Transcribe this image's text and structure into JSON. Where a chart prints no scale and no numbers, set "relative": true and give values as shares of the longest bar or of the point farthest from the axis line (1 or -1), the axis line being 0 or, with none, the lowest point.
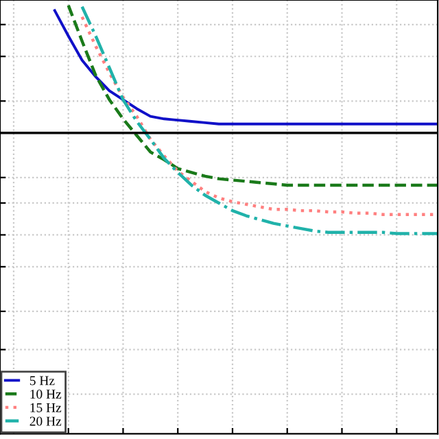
{
  "chart_data": {
    "type": "line",
    "relative": true,
    "categories": [
      null,
      null,
      null,
      null,
      null,
      null,
      null,
      null,
      null,
      null,
      null,
      null,
      null,
      null,
      null,
      null,
      null,
      null,
      null,
      null,
      null,
      null,
      null,
      null,
      null,
      null,
      null,
      null,
      null,
      null,
      null,
      null,
      null
    ],
    "series": [
      {
        "name": "5 Hz",
        "color": "#1010c8",
        "line_style": "solid",
        "values": [
          null,
          null,
          null,
          null,
          0.96,
          0.76,
          0.57,
          0.44,
          0.33,
          0.26,
          0.19,
          0.13,
          0.11,
          0.1,
          0.09,
          0.08,
          0.07,
          0.07,
          0.07,
          0.07,
          0.07,
          0.07,
          0.07,
          0.07,
          0.07,
          0.07,
          0.07,
          0.07,
          0.07,
          0.07,
          0.07,
          0.07,
          0.07
        ]
      },
      {
        "name": "10 Hz",
        "color": "#1a7a1a",
        "line_style": "dashed",
        "values": [
          null,
          null,
          null,
          null,
          null,
          1.0,
          0.72,
          0.45,
          0.26,
          0.11,
          -0.02,
          -0.15,
          -0.21,
          -0.28,
          -0.31,
          -0.34,
          -0.36,
          -0.37,
          -0.38,
          -0.39,
          -0.4,
          -0.41,
          -0.41,
          -0.41,
          -0.41,
          -0.41,
          -0.41,
          -0.41,
          -0.41,
          -0.41,
          -0.41,
          -0.41,
          -0.41
        ]
      },
      {
        "name": "15 Hz",
        "color": "#ff8080",
        "line_style": "dotted",
        "values": [
          null,
          null,
          null,
          null,
          null,
          null,
          0.91,
          0.68,
          0.47,
          0.28,
          0.13,
          -0.05,
          -0.18,
          -0.3,
          -0.38,
          -0.46,
          -0.51,
          -0.54,
          -0.56,
          -0.58,
          -0.6,
          -0.6,
          -0.61,
          -0.61,
          -0.62,
          -0.62,
          -0.63,
          -0.63,
          -0.64,
          -0.64,
          -0.64,
          -0.64,
          -0.64
        ]
      },
      {
        "name": "20 Hz",
        "color": "#20b2aa",
        "line_style": "dashdot",
        "values": [
          null,
          null,
          null,
          null,
          null,
          null,
          0.99,
          0.76,
          0.51,
          0.26,
          0.09,
          -0.05,
          -0.2,
          -0.31,
          -0.41,
          -0.49,
          -0.55,
          -0.61,
          -0.65,
          -0.68,
          -0.71,
          -0.73,
          -0.75,
          -0.77,
          -0.78,
          -0.78,
          -0.78,
          -0.78,
          -0.78,
          -0.79,
          -0.79,
          -0.79,
          -0.79
        ]
      }
    ],
    "ref_lines": [
      {
        "axis": "y",
        "value": 0,
        "color": "#000000",
        "line_style": "solid"
      }
    ],
    "grid": true,
    "legend": "bottom left"
  }
}
